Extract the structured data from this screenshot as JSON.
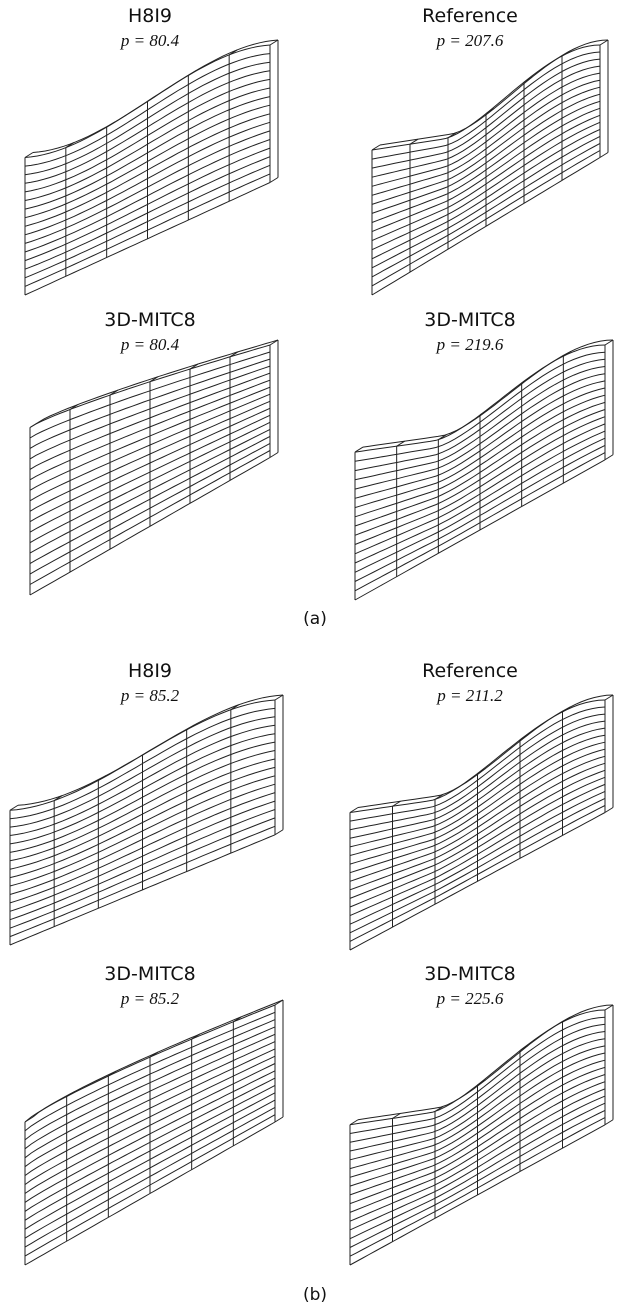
{
  "panels": [
    {
      "title": "H8I9",
      "p": "p = 80.4"
    },
    {
      "title": "Reference",
      "p": "p = 207.6"
    },
    {
      "title": "3D-MITC8",
      "p": "p = 80.4"
    },
    {
      "title": "3D-MITC8",
      "p": "p = 219.6"
    },
    {
      "title": "H8I9",
      "p": "p = 85.2"
    },
    {
      "title": "Reference",
      "p": "p = 211.2"
    },
    {
      "title": "3D-MITC8",
      "p": "p = 85.2"
    },
    {
      "title": "3D-MITC8",
      "p": "p = 225.6"
    }
  ],
  "captions": [
    "(a)",
    "(b)"
  ]
}
